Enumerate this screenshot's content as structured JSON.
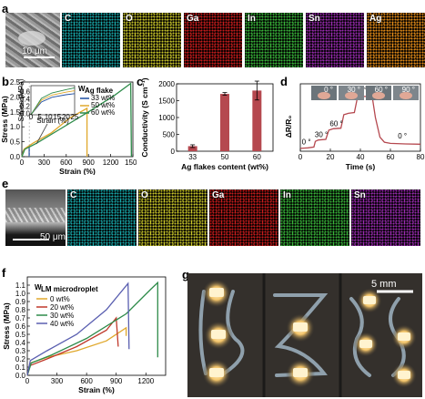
{
  "panels": {
    "a": {
      "label": "a",
      "scalebar": "10 μm",
      "elements": [
        "C",
        "O",
        "Ga",
        "In",
        "Sn",
        "Ag"
      ],
      "colors": [
        "#18a6a8",
        "#c9c52a",
        "#c81c1c",
        "#39b43a",
        "#9a2bb0",
        "#e38b18"
      ]
    },
    "b": {
      "label": "b"
    },
    "c": {
      "label": "c"
    },
    "d": {
      "label": "d",
      "angle_labels": [
        "0 °",
        "30 °",
        "60 °",
        "90 °",
        "0 °"
      ],
      "inset_labels": [
        "0 °",
        "30 °",
        "60 °",
        "90 °"
      ]
    },
    "e": {
      "label": "e",
      "scalebar": "50 μm",
      "elements": [
        "C",
        "O",
        "Ga",
        "In",
        "Sn"
      ],
      "colors": [
        "#18a6a8",
        "#c9c52a",
        "#c81c1c",
        "#39b43a",
        "#9a2bb0"
      ]
    },
    "f": {
      "label": "f"
    },
    "g": {
      "label": "g",
      "scalebar": "5 mm"
    }
  },
  "chart_data": [
    {
      "id": "b",
      "type": "line",
      "xlabel": "Strain (%)",
      "ylabel": "Stress (MPa)",
      "xlim": [
        0,
        1500
      ],
      "ylim": [
        0,
        2.5
      ],
      "xticks": [
        0,
        300,
        600,
        900,
        1200,
        1500
      ],
      "yticks": [
        0.0,
        0.5,
        1.0,
        1.5,
        2.0,
        2.5
      ],
      "legend_title": "W",
      "legend_subscript": "Ag flake",
      "series": [
        {
          "name": "33 wt%",
          "color": "#1f4fa3",
          "points": [
            [
              0,
              0
            ],
            [
              20,
              0.2
            ],
            [
              60,
              0.3
            ],
            [
              100,
              0.35
            ],
            [
              100,
              0
            ]
          ]
        },
        {
          "name": "50 wt%",
          "color": "#e0a82c",
          "points": [
            [
              0,
              0
            ],
            [
              30,
              0.25
            ],
            [
              150,
              0.45
            ],
            [
              400,
              0.8
            ],
            [
              650,
              1.3
            ],
            [
              880,
              1.62
            ],
            [
              880,
              0
            ]
          ]
        },
        {
          "name": "60 wt%",
          "color": "#2e8b4a",
          "points": [
            [
              0,
              0
            ],
            [
              40,
              0.25
            ],
            [
              200,
              0.45
            ],
            [
              500,
              0.9
            ],
            [
              900,
              1.5
            ],
            [
              1250,
              2.05
            ],
            [
              1470,
              2.45
            ],
            [
              1480,
              0
            ]
          ]
        }
      ],
      "inset": {
        "xlabel": "Strain (%)",
        "ylabel": "Stress (MPa)",
        "xticks": [
          0,
          5,
          10,
          15,
          20,
          25
        ],
        "yticks": [
          0.0,
          0.2,
          0.4,
          0.6
        ]
      }
    },
    {
      "id": "c",
      "type": "bar",
      "xlabel": "Ag flakes content (wt%)",
      "ylabel": "Conductivity (S cm⁻¹)",
      "categories": [
        "33",
        "50",
        "60"
      ],
      "values": [
        150,
        1700,
        1800
      ],
      "errors": [
        40,
        40,
        280
      ],
      "ylim": [
        0,
        2000
      ],
      "yticks": [
        0,
        500,
        1000,
        1500,
        2000
      ],
      "color": "#b5484f"
    },
    {
      "id": "d",
      "type": "line",
      "xlabel": "Time (s)",
      "ylabel": "ΔR/R₀",
      "xlim": [
        0,
        80
      ],
      "xticks": [
        0,
        20,
        40,
        60,
        80
      ],
      "color": "#b5484f",
      "points": [
        [
          0,
          0.1
        ],
        [
          5,
          0.12
        ],
        [
          9,
          0.15
        ],
        [
          10,
          0.35
        ],
        [
          12,
          0.4
        ],
        [
          17,
          0.42
        ],
        [
          19,
          0.75
        ],
        [
          22,
          0.8
        ],
        [
          27,
          0.82
        ],
        [
          29,
          1.3
        ],
        [
          32,
          1.35
        ],
        [
          36,
          1.38
        ],
        [
          38,
          1.9
        ],
        [
          42,
          1.95
        ],
        [
          46,
          1.95
        ],
        [
          48,
          1.9
        ],
        [
          50,
          1.2
        ],
        [
          53,
          0.5
        ],
        [
          56,
          0.32
        ],
        [
          60,
          0.28
        ],
        [
          70,
          0.26
        ],
        [
          80,
          0.25
        ]
      ],
      "ylim": [
        0,
        2.4
      ]
    },
    {
      "id": "f",
      "type": "line",
      "xlabel": "Strain (%)",
      "ylabel": "Stress (MPa)",
      "xlim": [
        0,
        1400
      ],
      "ylim": [
        0,
        1.2
      ],
      "xticks": [
        0,
        300,
        600,
        900,
        1200
      ],
      "yticks": [
        0.0,
        0.1,
        0.2,
        0.3,
        0.4,
        0.5,
        0.6,
        0.7,
        0.8,
        0.9,
        1.0,
        1.1
      ],
      "legend_title": "W",
      "legend_subscript": "LM microdroplet",
      "series": [
        {
          "name": "0 wt%",
          "color": "#e0a82c",
          "points": [
            [
              0,
              0
            ],
            [
              30,
              0.15
            ],
            [
              200,
              0.22
            ],
            [
              500,
              0.3
            ],
            [
              800,
              0.42
            ],
            [
              1000,
              0.58
            ],
            [
              1000,
              0.48
            ]
          ]
        },
        {
          "name": "20 wt%",
          "color": "#c0392b",
          "points": [
            [
              0,
              0
            ],
            [
              30,
              0.12
            ],
            [
              200,
              0.2
            ],
            [
              500,
              0.35
            ],
            [
              800,
              0.55
            ],
            [
              900,
              0.7
            ],
            [
              920,
              0.35
            ]
          ]
        },
        {
          "name": "30 wt%",
          "color": "#2e8b4a",
          "points": [
            [
              0,
              0
            ],
            [
              40,
              0.15
            ],
            [
              250,
              0.25
            ],
            [
              600,
              0.45
            ],
            [
              1000,
              0.75
            ],
            [
              1250,
              1.05
            ],
            [
              1320,
              1.13
            ],
            [
              1320,
              0.22
            ]
          ]
        },
        {
          "name": "40 wt%",
          "color": "#5a5fb0",
          "points": [
            [
              0,
              0
            ],
            [
              30,
              0.18
            ],
            [
              200,
              0.3
            ],
            [
              500,
              0.5
            ],
            [
              800,
              0.8
            ],
            [
              1020,
              1.12
            ],
            [
              1030,
              0.32
            ]
          ]
        }
      ]
    }
  ]
}
